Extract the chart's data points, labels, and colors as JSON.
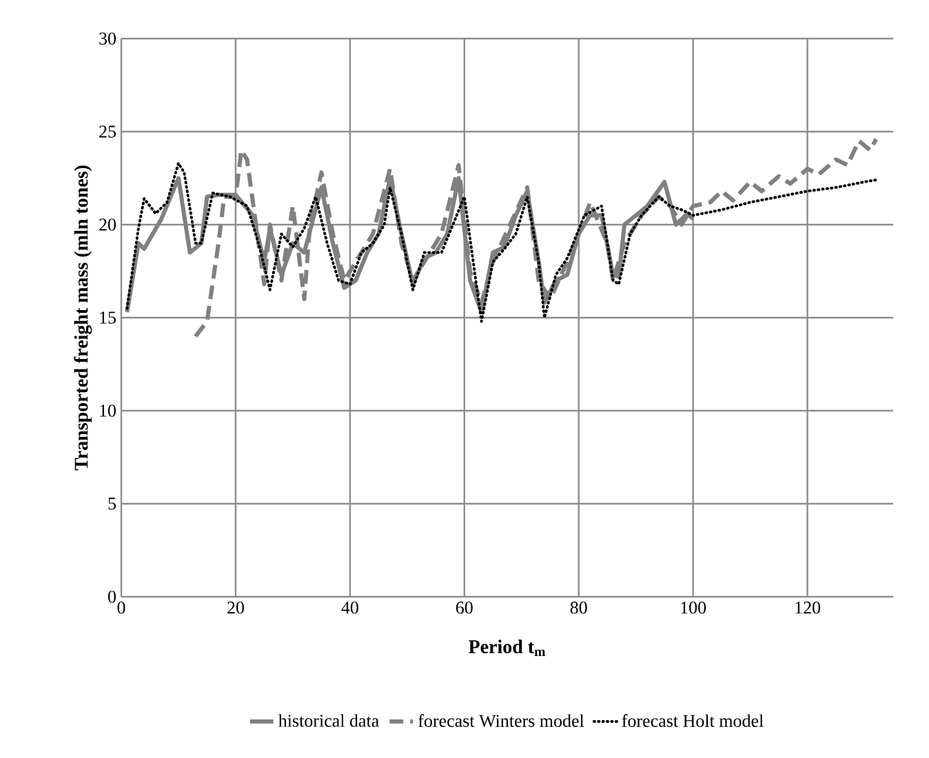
{
  "chart_data": {
    "type": "line",
    "xlabel": "Period t$_{m}$",
    "ylabel": "Transported freight mass  (mln tones)",
    "xlim": [
      0,
      135
    ],
    "xticks": [
      0,
      20,
      40,
      60,
      80,
      100,
      120
    ],
    "ylim": [
      0,
      30
    ],
    "yticks": [
      0,
      5,
      10,
      15,
      20,
      25,
      30
    ],
    "grid": true,
    "legend": "bottom",
    "marker": "none",
    "series": [
      {
        "name": "historical data",
        "color": "#808080",
        "line_style": "solid",
        "x": [
          1,
          3,
          4,
          7,
          10,
          12,
          14,
          15,
          17,
          20,
          23,
          25,
          26,
          28,
          30,
          32,
          35,
          37,
          39,
          41,
          43,
          45,
          47,
          49,
          51,
          53,
          55,
          57,
          59,
          61,
          63,
          65,
          67,
          69,
          71,
          73,
          74,
          76,
          78,
          80,
          82,
          84,
          86,
          87,
          88,
          90,
          92,
          95,
          97,
          99,
          100
        ],
        "values": [
          15.3,
          19,
          18.7,
          20.3,
          22.5,
          18.5,
          19,
          21.5,
          21.6,
          21.6,
          20.5,
          18,
          19.8,
          17.3,
          19,
          18.5,
          22,
          19,
          16.6,
          17,
          18.5,
          19.5,
          22.5,
          19.5,
          16.8,
          18.2,
          18.5,
          19.5,
          22.5,
          17,
          15.3,
          18.5,
          18.8,
          20.5,
          21.8,
          18,
          15.8,
          17,
          17.3,
          19.5,
          20.5,
          20.5,
          17.3,
          17.2,
          20,
          20.5,
          21,
          22.3,
          20,
          20.6,
          20.3
        ]
      },
      {
        "name": "forecast Winters model",
        "color": "#808080",
        "line_style": "dashed",
        "x": [
          13,
          15,
          17,
          18,
          20,
          21,
          22,
          24,
          25,
          26,
          28,
          30,
          32,
          33,
          35,
          37,
          39,
          41,
          44,
          47,
          49,
          51,
          53,
          56,
          59,
          61,
          63,
          65,
          68,
          71,
          73,
          75,
          78,
          80,
          82,
          85,
          86,
          88,
          91,
          94,
          96,
          98,
          100,
          103,
          105,
          107,
          110,
          112,
          115,
          117,
          120,
          122,
          125,
          127,
          129,
          131,
          132
        ],
        "values": [
          14,
          14.8,
          19,
          21.5,
          21.5,
          24,
          23.5,
          19,
          16.8,
          20,
          17,
          21,
          16,
          20,
          22.8,
          19.5,
          17,
          18,
          19.5,
          23,
          19,
          17,
          18,
          19.5,
          23.2,
          17.5,
          15.8,
          18,
          20,
          22,
          17,
          16,
          18,
          19.5,
          21.2,
          19,
          17,
          19,
          20.5,
          21.5,
          21,
          20,
          21,
          21.2,
          21.8,
          21.3,
          22.3,
          21.8,
          22.6,
          22.2,
          23,
          22.7,
          23.5,
          23.2,
          24.5,
          24,
          24.6
        ]
      },
      {
        "name": "forecast Holt model",
        "color": "#000000",
        "line_style": "dotted",
        "x": [
          1,
          3,
          4,
          6,
          8,
          10,
          11,
          13,
          14,
          16,
          19,
          22,
          24,
          26,
          28,
          30,
          32,
          34,
          36,
          38,
          40,
          42,
          44,
          46,
          47,
          49,
          51,
          53,
          56,
          58,
          60,
          62,
          63,
          65,
          67,
          69,
          71,
          73,
          74,
          76,
          78,
          81,
          84,
          86,
          87,
          89,
          91,
          94,
          96,
          98,
          100,
          105,
          110,
          115,
          120,
          125,
          130,
          132
        ],
        "values": [
          15.5,
          19.8,
          21.4,
          20.6,
          21.2,
          23.3,
          22.8,
          19,
          19,
          21.7,
          21.5,
          21,
          19,
          16.5,
          19.5,
          18.8,
          19.8,
          21.5,
          19,
          17,
          16.8,
          18.5,
          19,
          20,
          22,
          19.5,
          16.5,
          18.5,
          18.5,
          20,
          21.5,
          17,
          14.8,
          18,
          18.7,
          19.5,
          21.5,
          18,
          15,
          17.3,
          18.2,
          20.5,
          21,
          17,
          16.8,
          19.5,
          20.5,
          21.5,
          21,
          20.8,
          20.5,
          20.8,
          21.2,
          21.5,
          21.8,
          22,
          22.3,
          22.4
        ]
      }
    ]
  }
}
